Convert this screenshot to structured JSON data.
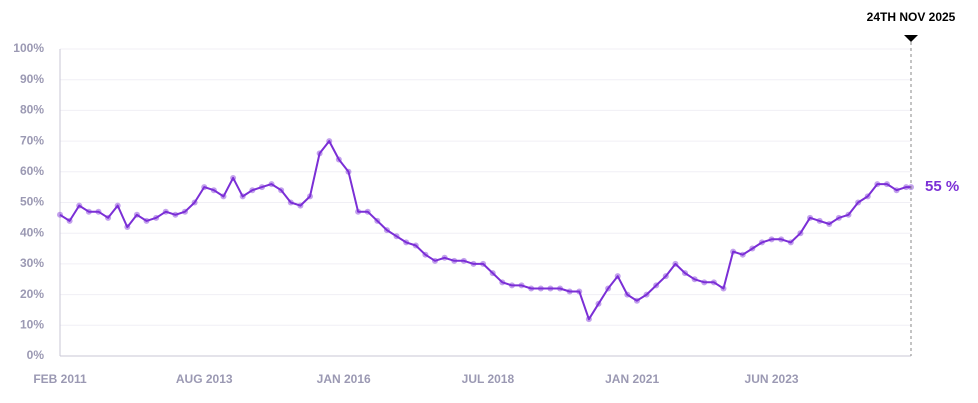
{
  "chart_data": {
    "type": "line",
    "x": [
      "2011-02",
      "2011-04",
      "2011-06",
      "2011-08",
      "2011-10",
      "2011-12",
      "2012-02",
      "2012-04",
      "2012-06",
      "2012-08",
      "2012-10",
      "2012-12",
      "2013-02",
      "2013-04",
      "2013-06",
      "2013-08",
      "2013-10",
      "2013-12",
      "2014-02",
      "2014-04",
      "2014-06",
      "2014-08",
      "2014-10",
      "2014-12",
      "2015-02",
      "2015-04",
      "2015-06",
      "2015-08",
      "2015-10",
      "2015-12",
      "2016-02",
      "2016-04",
      "2016-06",
      "2016-08",
      "2016-10",
      "2016-12",
      "2017-02",
      "2017-04",
      "2017-06",
      "2017-08",
      "2017-10",
      "2017-12",
      "2018-02",
      "2018-04",
      "2018-06",
      "2018-08",
      "2018-10",
      "2018-12",
      "2019-02",
      "2019-04",
      "2019-06",
      "2019-08",
      "2019-10",
      "2019-12",
      "2020-02",
      "2020-04",
      "2020-06",
      "2020-08",
      "2020-10",
      "2020-12",
      "2021-02",
      "2021-04",
      "2021-06",
      "2021-08",
      "2021-10",
      "2021-12",
      "2022-02",
      "2022-04",
      "2022-06",
      "2022-08",
      "2022-10",
      "2022-12",
      "2023-02",
      "2023-04",
      "2023-06",
      "2023-08",
      "2023-10",
      "2023-12",
      "2024-02",
      "2024-04",
      "2024-06",
      "2024-08",
      "2024-10",
      "2024-12",
      "2025-02",
      "2025-04",
      "2025-06",
      "2025-08",
      "2025-10",
      "2025-11"
    ],
    "values": [
      46,
      44,
      49,
      47,
      47,
      45,
      49,
      42,
      46,
      44,
      45,
      47,
      46,
      47,
      50,
      55,
      54,
      52,
      58,
      52,
      54,
      55,
      56,
      54,
      50,
      49,
      52,
      66,
      70,
      64,
      60,
      47,
      47,
      44,
      41,
      39,
      37,
      36,
      33,
      31,
      32,
      31,
      31,
      30,
      30,
      27,
      24,
      23,
      23,
      22,
      22,
      22,
      22,
      21,
      21,
      12,
      17,
      22,
      26,
      20,
      18,
      20,
      23,
      26,
      30,
      27,
      25,
      24,
      24,
      22,
      34,
      33,
      35,
      37,
      38,
      38,
      37,
      40,
      45,
      44,
      43,
      45,
      46,
      50,
      52,
      56,
      56,
      54,
      55,
      55
    ],
    "color": "#7b2fd6",
    "xlim": [
      "2011-02",
      "2025-11"
    ],
    "xticks": [
      {
        "value": "2011-02",
        "label": "FEB 2011"
      },
      {
        "value": "2013-08",
        "label": "AUG 2013"
      },
      {
        "value": "2016-01",
        "label": "JAN 2016"
      },
      {
        "value": "2018-07",
        "label": "JUL 2018"
      },
      {
        "value": "2021-01",
        "label": "JAN 2021"
      },
      {
        "value": "2023-06",
        "label": "JUN 2023"
      }
    ],
    "ylim": [
      0,
      100
    ],
    "yticks": [
      {
        "value": 0,
        "label": "0%"
      },
      {
        "value": 10,
        "label": "10%"
      },
      {
        "value": 20,
        "label": "20%"
      },
      {
        "value": 30,
        "label": "30%"
      },
      {
        "value": 40,
        "label": "40%"
      },
      {
        "value": 50,
        "label": "50%"
      },
      {
        "value": 60,
        "label": "60%"
      },
      {
        "value": 70,
        "label": "70%"
      },
      {
        "value": 80,
        "label": "80%"
      },
      {
        "value": 90,
        "label": "90%"
      },
      {
        "value": 100,
        "label": "100%"
      }
    ],
    "grid": true,
    "annotation": {
      "x": "2025-11",
      "label": "24TH NOV 2025"
    },
    "end_label": {
      "value": 55,
      "label": "55 %"
    }
  }
}
